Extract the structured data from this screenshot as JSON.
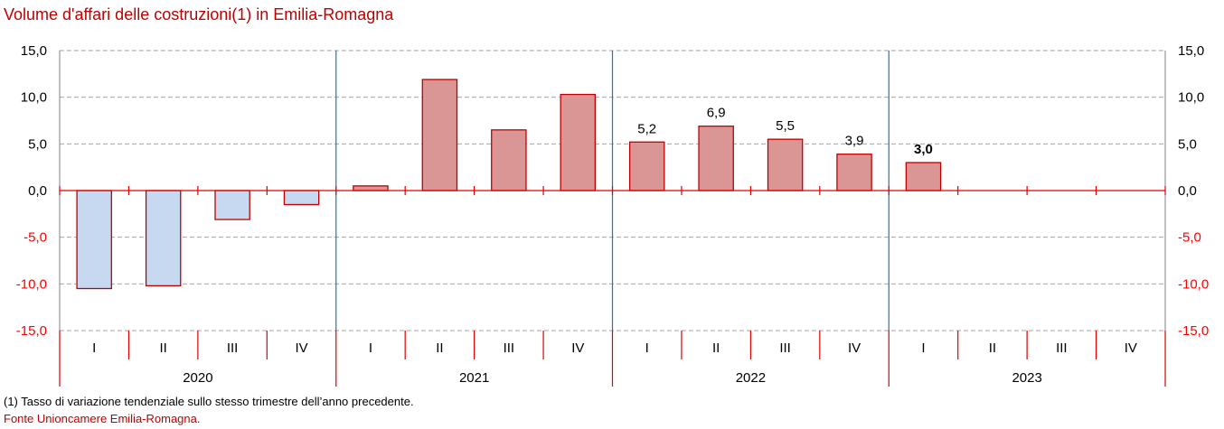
{
  "chart_data": {
    "type": "bar",
    "title": "Volume d'affari delle costruzioni(1) in Emilia-Romagna",
    "xlabel": "",
    "ylabel": "",
    "ylim": [
      -15,
      15
    ],
    "yticks": [
      15,
      10,
      5,
      0,
      -5,
      -10,
      -15
    ],
    "ytick_labels": [
      "15,0",
      "10,0",
      "5,0",
      "0,0",
      "-5,0",
      "-10,0",
      "-15,0"
    ],
    "grid": true,
    "legend": "none",
    "years": [
      "2020",
      "2021",
      "2022",
      "2023"
    ],
    "categories": [
      "I",
      "II",
      "III",
      "IV",
      "I",
      "II",
      "III",
      "IV",
      "I",
      "II",
      "III",
      "IV",
      "I",
      "II",
      "III",
      "IV"
    ],
    "series": [
      {
        "name": "Volume d'affari",
        "values": [
          -10.5,
          -10.2,
          -3.1,
          -1.5,
          0.5,
          11.9,
          6.5,
          10.3,
          5.2,
          6.9,
          5.5,
          3.9,
          3.0,
          null,
          null,
          null
        ]
      }
    ],
    "data_labels": [
      null,
      null,
      null,
      null,
      null,
      null,
      null,
      null,
      "5,2",
      "6,9",
      "5,5",
      "3,9",
      "3,0",
      null,
      null,
      null
    ],
    "bold_labels": [
      false,
      false,
      false,
      false,
      false,
      false,
      false,
      false,
      false,
      false,
      false,
      false,
      true,
      false,
      false,
      false
    ],
    "colors": {
      "positive_fill": "#d99694",
      "negative_fill": "#c6d9f0",
      "bar_border": "#c00000",
      "zero_line": "#e00000",
      "year_divider": "#1f77b4",
      "grid": "#a6a6a6",
      "axis": "#808080",
      "negative_tick": "#ff0000",
      "positive_tick": "#000000"
    }
  },
  "footnote": "(1) Tasso di variazione tendenziale sullo stesso trimestre dell’anno precedente.",
  "source": "Fonte Unioncamere Emilia-Romagna."
}
